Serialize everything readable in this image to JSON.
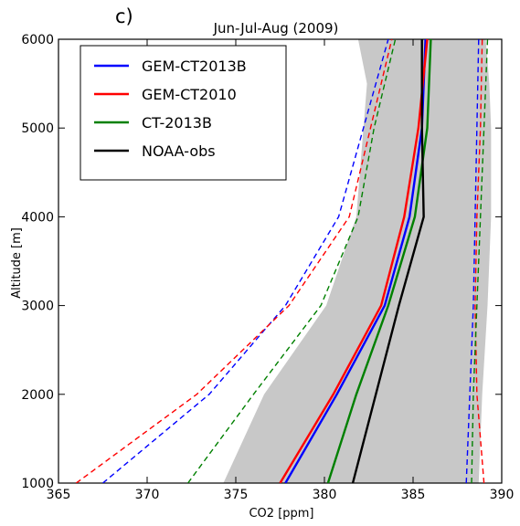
{
  "chart_data": {
    "type": "line",
    "panel_label": "c)",
    "title": "Jun-Jul-Aug (2009)",
    "xlabel": "CO2 [ppm]",
    "ylabel": "Altitude [m]",
    "xlim": [
      365,
      390
    ],
    "ylim": [
      1000,
      6000
    ],
    "xticks": [
      "365",
      "370",
      "375",
      "380",
      "385",
      "390"
    ],
    "yticks": [
      "1000",
      "2000",
      "3000",
      "4000",
      "5000",
      "6000"
    ],
    "legend_position": "top-left",
    "legend": [
      {
        "label": "GEM-CT2013B",
        "color": "#0000ff"
      },
      {
        "label": "GEM-CT2010",
        "color": "#ff0000"
      },
      {
        "label": "CT-2013B",
        "color": "#008000"
      },
      {
        "label": "NOAA-obs",
        "color": "#000000"
      }
    ],
    "observation_spread": {
      "color": "#c8c8c8",
      "low": [
        [
          374.3,
          1000
        ],
        [
          376.6,
          2000
        ],
        [
          380.1,
          3000
        ],
        [
          381.8,
          4000
        ],
        [
          382.2,
          5000
        ],
        [
          382.4,
          5500
        ],
        [
          381.9,
          6000
        ]
      ],
      "high": [
        [
          388.7,
          1000
        ],
        [
          388.9,
          2000
        ],
        [
          389.2,
          3000
        ],
        [
          389.4,
          4000
        ],
        [
          389.4,
          5000
        ],
        [
          389.3,
          5500
        ],
        [
          389.1,
          6000
        ]
      ]
    },
    "series": [
      {
        "name": "GEM-CT2013B",
        "color": "#0000ff",
        "style": "solid",
        "points": [
          [
            377.8,
            1000
          ],
          [
            380.7,
            2000
          ],
          [
            383.4,
            3000
          ],
          [
            384.8,
            4000
          ],
          [
            385.5,
            5000
          ],
          [
            385.7,
            6000
          ]
        ]
      },
      {
        "name": "GEM-CT2010",
        "color": "#ff0000",
        "style": "solid",
        "points": [
          [
            377.5,
            1000
          ],
          [
            380.5,
            2000
          ],
          [
            383.2,
            3000
          ],
          [
            384.5,
            4000
          ],
          [
            385.3,
            5000
          ],
          [
            385.8,
            6000
          ]
        ]
      },
      {
        "name": "CT-2013B",
        "color": "#008000",
        "style": "solid",
        "points": [
          [
            380.2,
            1000
          ],
          [
            381.8,
            2000
          ],
          [
            383.6,
            3000
          ],
          [
            385.1,
            4000
          ],
          [
            385.8,
            5000
          ],
          [
            386.0,
            6000
          ]
        ]
      },
      {
        "name": "NOAA-obs",
        "color": "#000000",
        "style": "solid",
        "points": [
          [
            381.6,
            1000
          ],
          [
            382.9,
            2000
          ],
          [
            384.2,
            3000
          ],
          [
            385.6,
            4000
          ],
          [
            385.5,
            5000
          ],
          [
            385.5,
            6000
          ]
        ]
      },
      {
        "color": "#0000ff",
        "style": "dashed",
        "points": [
          [
            367.5,
            1000
          ],
          [
            373.5,
            2000
          ],
          [
            377.8,
            3000
          ],
          [
            380.8,
            4000
          ],
          [
            382.2,
            5000
          ],
          [
            383.6,
            6000
          ]
        ]
      },
      {
        "color": "#ff0000",
        "style": "dashed",
        "points": [
          [
            366.0,
            1000
          ],
          [
            372.8,
            2000
          ],
          [
            378.0,
            3000
          ],
          [
            381.4,
            4000
          ],
          [
            382.6,
            5000
          ],
          [
            383.8,
            6000
          ]
        ]
      },
      {
        "color": "#008000",
        "style": "dashed",
        "points": [
          [
            372.3,
            1000
          ],
          [
            376.0,
            2000
          ],
          [
            379.8,
            3000
          ],
          [
            381.9,
            4000
          ],
          [
            382.8,
            5000
          ],
          [
            384.0,
            6000
          ]
        ]
      },
      {
        "color": "#0000ff",
        "style": "dashed",
        "points": [
          [
            388.0,
            1000
          ],
          [
            388.2,
            2000
          ],
          [
            388.4,
            3000
          ],
          [
            388.5,
            4000
          ],
          [
            388.6,
            5000
          ],
          [
            388.7,
            6000
          ]
        ]
      },
      {
        "color": "#ff0000",
        "style": "dashed",
        "points": [
          [
            389.0,
            1000
          ],
          [
            388.6,
            2000
          ],
          [
            388.5,
            3000
          ],
          [
            388.6,
            4000
          ],
          [
            388.8,
            5000
          ],
          [
            388.9,
            6000
          ]
        ]
      },
      {
        "color": "#008000",
        "style": "dashed",
        "points": [
          [
            388.3,
            1000
          ],
          [
            388.4,
            2000
          ],
          [
            388.6,
            3000
          ],
          [
            388.8,
            4000
          ],
          [
            389.0,
            5000
          ],
          [
            389.2,
            6000
          ]
        ]
      }
    ]
  }
}
